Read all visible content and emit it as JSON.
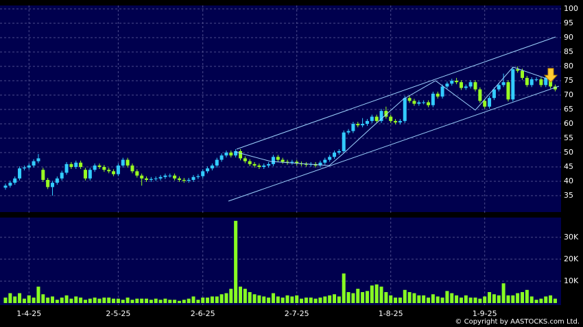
{
  "chart_data": [
    {
      "type": "candlestick",
      "categories": [
        null,
        null,
        null,
        null,
        null,
        "1-4-25",
        null,
        null,
        null,
        null,
        null,
        null,
        null,
        null,
        null,
        null,
        null,
        null,
        null,
        null,
        null,
        null,
        null,
        null,
        "2-5-25",
        null,
        null,
        null,
        null,
        null,
        null,
        null,
        null,
        null,
        null,
        null,
        null,
        null,
        null,
        null,
        null,
        null,
        "2-6-25",
        null,
        null,
        null,
        null,
        null,
        null,
        null,
        null,
        null,
        null,
        null,
        null,
        null,
        null,
        null,
        null,
        null,
        null,
        null,
        "2-7-25",
        null,
        null,
        null,
        null,
        null,
        null,
        null,
        null,
        null,
        null,
        null,
        null,
        null,
        null,
        null,
        null,
        null,
        null,
        null,
        "1-8-25",
        null,
        null,
        null,
        null,
        null,
        null,
        null,
        null,
        null,
        null,
        null,
        null,
        null,
        null,
        null,
        null,
        null,
        null,
        null,
        "1-9-25",
        null,
        null,
        null,
        null,
        null,
        null,
        null,
        null,
        null,
        null,
        null,
        null,
        null,
        null,
        null
      ],
      "series": [
        {
          "up_color": "#33ccff",
          "down_color": "#99ff22",
          "values": [
            [
              37.8,
              39.2,
              37.1,
              38.5
            ],
            [
              38.5,
              40.2,
              37.8,
              39.5
            ],
            [
              39.5,
              41.7,
              38.8,
              41
            ],
            [
              41,
              45.2,
              40.3,
              44.5
            ],
            [
              44.5,
              45.5,
              43.8,
              44.8
            ],
            [
              44.8,
              46.2,
              44.1,
              45.5
            ],
            [
              45.5,
              47.7,
              44.8,
              47
            ],
            [
              47,
              49.5,
              46.3,
              48
            ],
            [
              44,
              44.7,
              39.8,
              40.5
            ],
            [
              40.5,
              41.2,
              37.3,
              38
            ],
            [
              38,
              40.2,
              35,
              39.5
            ],
            [
              39.5,
              41.7,
              38.8,
              41
            ],
            [
              41,
              43.7,
              40.3,
              43
            ],
            [
              43,
              46.7,
              42.3,
              46
            ],
            [
              46,
              46.7,
              44.3,
              45
            ],
            [
              45,
              47.2,
              44.3,
              46.5
            ],
            [
              46.5,
              47.2,
              44.3,
              45
            ],
            [
              44,
              44.7,
              40.3,
              41
            ],
            [
              41,
              44.7,
              40.3,
              44
            ],
            [
              44,
              46.2,
              43.3,
              45.5
            ],
            [
              45.5,
              46.2,
              44.3,
              45
            ],
            [
              45,
              45.7,
              43.3,
              44
            ],
            [
              44,
              44.7,
              42.8,
              43.5
            ],
            [
              43.5,
              44.2,
              41.8,
              42.5
            ],
            [
              42.5,
              46.2,
              41.8,
              45.5
            ],
            [
              45.5,
              48.2,
              44.8,
              47.5
            ],
            [
              47.5,
              48.2,
              44.8,
              45.5
            ],
            [
              45.5,
              46.2,
              42.8,
              43.5
            ],
            [
              43.5,
              44.2,
              41.3,
              42
            ],
            [
              42,
              42.7,
              38.5,
              41
            ],
            [
              41,
              41.7,
              39.8,
              40.5
            ],
            [
              40.5,
              41.5,
              39.8,
              40.8
            ],
            [
              40.8,
              41.7,
              40.1,
              41
            ],
            [
              41,
              42.2,
              40.3,
              41.5
            ],
            [
              41.5,
              42.7,
              40.8,
              42
            ],
            [
              42,
              42.7,
              41.3,
              42
            ],
            [
              42,
              42.7,
              40.3,
              41
            ],
            [
              41,
              41.7,
              39.8,
              40.5
            ],
            [
              40.5,
              41.2,
              39.5,
              40.2
            ],
            [
              40.2,
              41.2,
              39.5,
              40.5
            ],
            [
              40.5,
              42.2,
              39.8,
              41.5
            ],
            [
              41.5,
              42.5,
              40.8,
              41.8
            ],
            [
              41.8,
              44.2,
              41.1,
              43.5
            ],
            [
              43.5,
              45.2,
              42.8,
              44.5
            ],
            [
              44.5,
              46.2,
              43.8,
              45.5
            ],
            [
              45.5,
              48.2,
              44.8,
              47.5
            ],
            [
              47.5,
              49.7,
              46.8,
              49
            ],
            [
              49,
              50.7,
              48.3,
              50
            ],
            [
              50,
              50.7,
              48.3,
              49
            ],
            [
              49,
              51.2,
              48.3,
              50.5
            ],
            [
              50.5,
              51.2,
              47.3,
              48
            ],
            [
              48,
              48.7,
              46.3,
              47
            ],
            [
              47,
              47.7,
              45.3,
              46
            ],
            [
              46,
              46.7,
              44.8,
              45.5
            ],
            [
              45.5,
              46.2,
              44.3,
              45
            ],
            [
              45,
              46.2,
              44.3,
              45.5
            ],
            [
              45.5,
              46.7,
              44.8,
              46
            ],
            [
              46,
              49.2,
              45.3,
              48.5
            ],
            [
              48.5,
              49.2,
              46.8,
              47.5
            ],
            [
              47.5,
              48.2,
              46.1,
              46.8
            ],
            [
              46.8,
              47.5,
              45.8,
              46.5
            ],
            [
              46.5,
              47.5,
              45.8,
              46.8
            ],
            [
              46.8,
              47.5,
              45.5,
              46.2
            ],
            [
              46.2,
              46.9,
              45.3,
              46
            ],
            [
              46,
              46.7,
              45.1,
              45.8
            ],
            [
              45.8,
              46.7,
              45.1,
              46
            ],
            [
              46,
              46.7,
              44.8,
              45.5
            ],
            [
              45.5,
              47.2,
              44.8,
              46.5
            ],
            [
              46.5,
              48.2,
              45.8,
              47.5
            ],
            [
              47.5,
              49.2,
              46.8,
              48.5
            ],
            [
              48.5,
              50.7,
              47.8,
              50
            ],
            [
              50,
              51.2,
              49.3,
              50.5
            ],
            [
              50.5,
              57.7,
              49.8,
              57
            ],
            [
              57,
              58.2,
              56.3,
              57.5
            ],
            [
              57.5,
              60.7,
              56.8,
              60
            ],
            [
              60,
              60.7,
              58.8,
              59.5
            ],
            [
              59.5,
              62,
              58.8,
              60
            ],
            [
              60,
              61.7,
              59.3,
              61
            ],
            [
              61,
              63.2,
              60.3,
              62.5
            ],
            [
              62.5,
              63.2,
              60.3,
              61
            ],
            [
              61,
              65.2,
              60.3,
              64.5
            ],
            [
              64.5,
              66,
              61.8,
              62.5
            ],
            [
              62.5,
              63.2,
              60.3,
              61
            ],
            [
              61,
              61.7,
              59.8,
              60.5
            ],
            [
              60.5,
              61.7,
              59.8,
              61
            ],
            [
              61,
              69.7,
              60.3,
              69
            ],
            [
              69,
              69.7,
              67.3,
              68
            ],
            [
              68,
              68.7,
              66.3,
              67
            ],
            [
              67,
              68.2,
              66.3,
              67.5
            ],
            [
              67.5,
              68.2,
              66.8,
              67.5
            ],
            [
              67.5,
              68.2,
              65.8,
              66.5
            ],
            [
              66.5,
              71.2,
              65.8,
              70.5
            ],
            [
              70.5,
              71.2,
              68.8,
              69.5
            ],
            [
              69.5,
              73.7,
              68.8,
              73
            ],
            [
              73,
              74.7,
              72.3,
              74
            ],
            [
              74,
              75.7,
              73.3,
              75
            ],
            [
              75,
              76,
              73.8,
              74.5
            ],
            [
              74.5,
              75.2,
              71.8,
              72.5
            ],
            [
              72.5,
              73.7,
              71.8,
              73
            ],
            [
              73,
              75.2,
              72.3,
              74.5
            ],
            [
              74.5,
              75.2,
              71.3,
              72
            ],
            [
              72,
              72.7,
              67.3,
              68
            ],
            [
              68,
              68.7,
              65.3,
              66
            ],
            [
              66,
              69.7,
              65.3,
              69
            ],
            [
              69,
              72.7,
              68.3,
              72
            ],
            [
              72,
              74.2,
              71.3,
              73.5
            ],
            [
              73.5,
              77.5,
              72.8,
              74.5
            ],
            [
              74.5,
              75.2,
              67.8,
              68.5
            ],
            [
              68.5,
              79.7,
              67.8,
              79
            ],
            [
              79,
              80,
              77.8,
              78.5
            ],
            [
              78.5,
              79.2,
              75.3,
              76
            ],
            [
              76,
              76.7,
              72.8,
              73.5
            ],
            [
              73.5,
              76.2,
              72.8,
              75.5
            ],
            [
              75.5,
              76.2,
              74.8,
              75.5
            ],
            [
              75.5,
              76.2,
              72.8,
              73.5
            ],
            [
              73.5,
              76.7,
              72.8,
              76
            ],
            [
              76,
              76.7,
              72.3,
              73
            ],
            [
              73,
              73.7,
              71.3,
              72
            ]
          ]
        }
      ],
      "ylim": [
        29.3,
        101.2
      ],
      "yticks": [
        35,
        40,
        45,
        50,
        55,
        60,
        65,
        70,
        75,
        80,
        85,
        90,
        95,
        100
      ],
      "grid": true
    },
    {
      "type": "bar",
      "color": "#88ff22",
      "values": [
        2500,
        4500,
        3000,
        4500,
        2000,
        3500,
        2500,
        7500,
        4000,
        2500,
        3000,
        1500,
        2500,
        3500,
        2000,
        3000,
        2500,
        1500,
        2000,
        2500,
        2000,
        2500,
        2500,
        2000,
        2000,
        1500,
        2500,
        1500,
        2000,
        2000,
        2000,
        1500,
        2000,
        1500,
        2000,
        1500,
        1500,
        1000,
        1500,
        2000,
        3000,
        1500,
        2500,
        2500,
        3000,
        3000,
        4000,
        4500,
        6500,
        37500,
        7500,
        6500,
        5000,
        4000,
        3500,
        3000,
        2500,
        4500,
        3000,
        2500,
        3500,
        3000,
        3500,
        2000,
        2500,
        2500,
        2000,
        2500,
        3000,
        3500,
        4000,
        3000,
        13500,
        5000,
        4500,
        6500,
        5000,
        5500,
        8000,
        8500,
        7500,
        5000,
        3500,
        2500,
        2500,
        6000,
        5000,
        4500,
        3500,
        3500,
        2500,
        4000,
        3000,
        2500,
        5500,
        4500,
        3500,
        2500,
        3500,
        2500,
        2500,
        2000,
        3000,
        5000,
        4000,
        3500,
        9000,
        3500,
        3500,
        4500,
        5000,
        6000,
        3000,
        1500,
        2000,
        3000,
        3500,
        2000
      ],
      "ylim": [
        0,
        39000
      ],
      "yticks": [
        {
          "value": 10000,
          "label": "10K"
        },
        {
          "value": 20000,
          "label": "20K"
        },
        {
          "value": 30000,
          "label": "30K"
        }
      ],
      "grid": true
    }
  ],
  "footer": "© Copyright by AASTOCKS.com Ltd."
}
